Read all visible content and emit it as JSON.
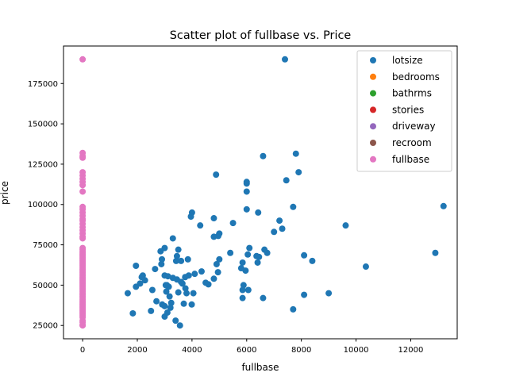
{
  "chart_data": {
    "type": "scatter",
    "title": "Scatter plot of fullbase vs. Price",
    "xlabel": "fullbase",
    "ylabel": "price",
    "xlim": [
      -700,
      13700
    ],
    "ylim": [
      16750,
      198250
    ],
    "xticks": [
      0,
      2000,
      4000,
      6000,
      8000,
      10000,
      12000
    ],
    "yticks": [
      25000,
      50000,
      75000,
      100000,
      125000,
      150000,
      175000
    ],
    "grid": false,
    "legend_position": "top-right",
    "series": [
      {
        "name": "lotsize",
        "color": "#1f77b4",
        "points": [
          [
            7400,
            190000
          ],
          [
            13200,
            99000
          ],
          [
            12900,
            70000
          ],
          [
            10360,
            61500
          ],
          [
            9620,
            87000
          ],
          [
            9000,
            45000
          ],
          [
            8400,
            65000
          ],
          [
            8100,
            68500
          ],
          [
            8100,
            44000
          ],
          [
            7900,
            120000
          ],
          [
            7800,
            131500
          ],
          [
            7700,
            98500
          ],
          [
            7700,
            35000
          ],
          [
            7450,
            115000
          ],
          [
            7300,
            85000
          ],
          [
            7200,
            90000
          ],
          [
            7000,
            83000
          ],
          [
            6750,
            70000
          ],
          [
            6650,
            72000
          ],
          [
            6600,
            130000
          ],
          [
            6600,
            42000
          ],
          [
            6450,
            67500
          ],
          [
            6420,
            95000
          ],
          [
            6400,
            64000
          ],
          [
            6360,
            68000
          ],
          [
            6100,
            73000
          ],
          [
            6060,
            47000
          ],
          [
            6040,
            69000
          ],
          [
            6000,
            113000
          ],
          [
            6000,
            108000
          ],
          [
            6000,
            97000
          ],
          [
            6000,
            114000
          ],
          [
            5960,
            59000
          ],
          [
            5885,
            50000
          ],
          [
            5850,
            47000
          ],
          [
            5850,
            64000
          ],
          [
            5850,
            42000
          ],
          [
            5800,
            60500
          ],
          [
            5500,
            88500
          ],
          [
            5400,
            70000
          ],
          [
            5000,
            82000
          ],
          [
            5000,
            66000
          ],
          [
            4960,
            80500
          ],
          [
            4950,
            58000
          ],
          [
            4900,
            63000
          ],
          [
            4880,
            118500
          ],
          [
            4800,
            91500
          ],
          [
            4800,
            80000
          ],
          [
            4800,
            54000
          ],
          [
            4600,
            50500
          ],
          [
            4500,
            51500
          ],
          [
            4350,
            58500
          ],
          [
            4300,
            87000
          ],
          [
            4100,
            57000
          ],
          [
            4000,
            95000
          ],
          [
            3960,
            92500
          ],
          [
            3990,
            38000
          ],
          [
            4050,
            45000
          ],
          [
            3880,
            56000
          ],
          [
            3850,
            66000
          ],
          [
            3800,
            45000
          ],
          [
            3760,
            48000
          ],
          [
            3750,
            55000
          ],
          [
            3700,
            38500
          ],
          [
            3650,
            51000
          ],
          [
            3600,
            65000
          ],
          [
            3600,
            52000
          ],
          [
            3560,
            25000
          ],
          [
            3500,
            72000
          ],
          [
            3500,
            45500
          ],
          [
            3450,
            68000
          ],
          [
            3450,
            53500
          ],
          [
            3420,
            65000
          ],
          [
            3400,
            28000
          ],
          [
            3300,
            79000
          ],
          [
            3300,
            54500
          ],
          [
            3240,
            39000
          ],
          [
            3210,
            36000
          ],
          [
            3180,
            43000
          ],
          [
            3150,
            49000
          ],
          [
            3120,
            55500
          ],
          [
            3100,
            33000
          ],
          [
            3080,
            50000
          ],
          [
            3060,
            46000
          ],
          [
            3040,
            50000
          ],
          [
            3000,
            73000
          ],
          [
            3000,
            56000
          ],
          [
            3000,
            37000
          ],
          [
            3000,
            30500
          ],
          [
            2910,
            38000
          ],
          [
            2900,
            66000
          ],
          [
            2880,
            63000
          ],
          [
            2850,
            71000
          ],
          [
            2700,
            40000
          ],
          [
            2650,
            60000
          ],
          [
            2550,
            47000
          ],
          [
            2500,
            34000
          ],
          [
            2280,
            53000
          ],
          [
            2200,
            56000
          ],
          [
            2160,
            55000
          ],
          [
            2100,
            51000
          ],
          [
            1950,
            49000
          ],
          [
            1950,
            62000
          ],
          [
            1836,
            32500
          ],
          [
            1650,
            45000
          ]
        ]
      },
      {
        "name": "bedrooms",
        "color": "#ff7f0e",
        "points": []
      },
      {
        "name": "bathrms",
        "color": "#2ca02c",
        "points": []
      },
      {
        "name": "stories",
        "color": "#d62728",
        "points": []
      },
      {
        "name": "driveway",
        "color": "#9467bd",
        "points": []
      },
      {
        "name": "recroom",
        "color": "#8c564b",
        "points": []
      },
      {
        "name": "fullbase",
        "color": "#e377c2",
        "points": [
          [
            0,
            190000
          ],
          [
            0,
            132000
          ],
          [
            0,
            130000
          ],
          [
            0,
            129000
          ],
          [
            0,
            120000
          ],
          [
            0,
            118000
          ],
          [
            0,
            116000
          ],
          [
            0,
            114000
          ],
          [
            0,
            112000
          ],
          [
            0,
            108000
          ],
          [
            0,
            98500
          ],
          [
            0,
            97000
          ],
          [
            0,
            95000
          ],
          [
            0,
            93000
          ],
          [
            0,
            91000
          ],
          [
            0,
            90000
          ],
          [
            0,
            88000
          ],
          [
            0,
            86000
          ],
          [
            0,
            84000
          ],
          [
            0,
            82000
          ],
          [
            0,
            80000
          ],
          [
            0,
            79000
          ],
          [
            0,
            73000
          ],
          [
            0,
            72000
          ],
          [
            0,
            71000
          ],
          [
            0,
            70000
          ],
          [
            0,
            69000
          ],
          [
            0,
            68000
          ],
          [
            0,
            67000
          ],
          [
            0,
            66000
          ],
          [
            0,
            65000
          ],
          [
            0,
            64000
          ],
          [
            0,
            63000
          ],
          [
            0,
            62000
          ],
          [
            0,
            61000
          ],
          [
            0,
            60000
          ],
          [
            0,
            59000
          ],
          [
            0,
            58000
          ],
          [
            0,
            57000
          ],
          [
            0,
            56000
          ],
          [
            0,
            55000
          ],
          [
            0,
            54000
          ],
          [
            0,
            53000
          ],
          [
            0,
            52000
          ],
          [
            0,
            51000
          ],
          [
            0,
            50000
          ],
          [
            0,
            49000
          ],
          [
            0,
            48000
          ],
          [
            0,
            47000
          ],
          [
            0,
            46000
          ],
          [
            0,
            45000
          ],
          [
            0,
            44000
          ],
          [
            0,
            43000
          ],
          [
            0,
            42000
          ],
          [
            0,
            41000
          ],
          [
            0,
            40000
          ],
          [
            0,
            39000
          ],
          [
            0,
            38000
          ],
          [
            0,
            37000
          ],
          [
            0,
            36000
          ],
          [
            0,
            35000
          ],
          [
            0,
            34000
          ],
          [
            0,
            33000
          ],
          [
            0,
            32000
          ],
          [
            0,
            31000
          ],
          [
            0,
            30000
          ],
          [
            0,
            28000
          ],
          [
            0,
            27000
          ],
          [
            0,
            25500
          ],
          [
            0,
            25000
          ]
        ]
      }
    ]
  }
}
